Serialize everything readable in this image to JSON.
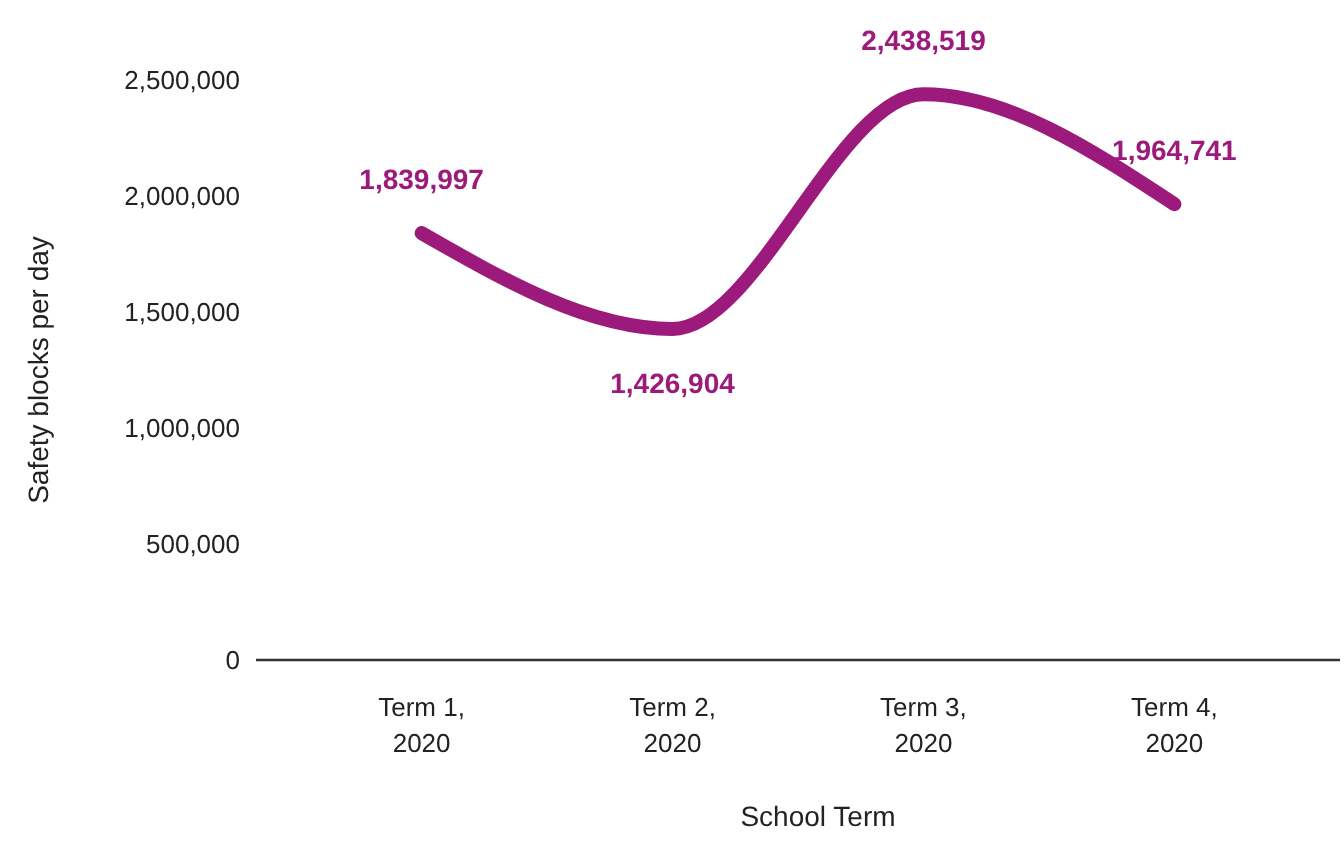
{
  "chart_data": {
    "type": "line",
    "xlabel": "School Term",
    "ylabel": "Safety blocks per day",
    "categories": [
      "Term 1, 2020",
      "Term 2, 2020",
      "Term 3, 2020",
      "Term 4, 2020"
    ],
    "series": [
      {
        "color": "#9c1a7b",
        "values": [
          1839997,
          1426904,
          2438519,
          1964741
        ],
        "value_labels": [
          "1,839,997",
          "1,426,904",
          "2,438,519",
          "1,964,741"
        ]
      }
    ],
    "ylim": [
      0,
      2500000
    ],
    "yticks": [
      {
        "value": 0,
        "label": "0"
      },
      {
        "value": 500000,
        "label": "500,000"
      },
      {
        "value": 1000000,
        "label": "1,000,000"
      },
      {
        "value": 1500000,
        "label": "1,500,000"
      },
      {
        "value": 2000000,
        "label": "2,000,000"
      },
      {
        "value": 2500000,
        "label": "2,500,000"
      }
    ],
    "grid": false
  }
}
